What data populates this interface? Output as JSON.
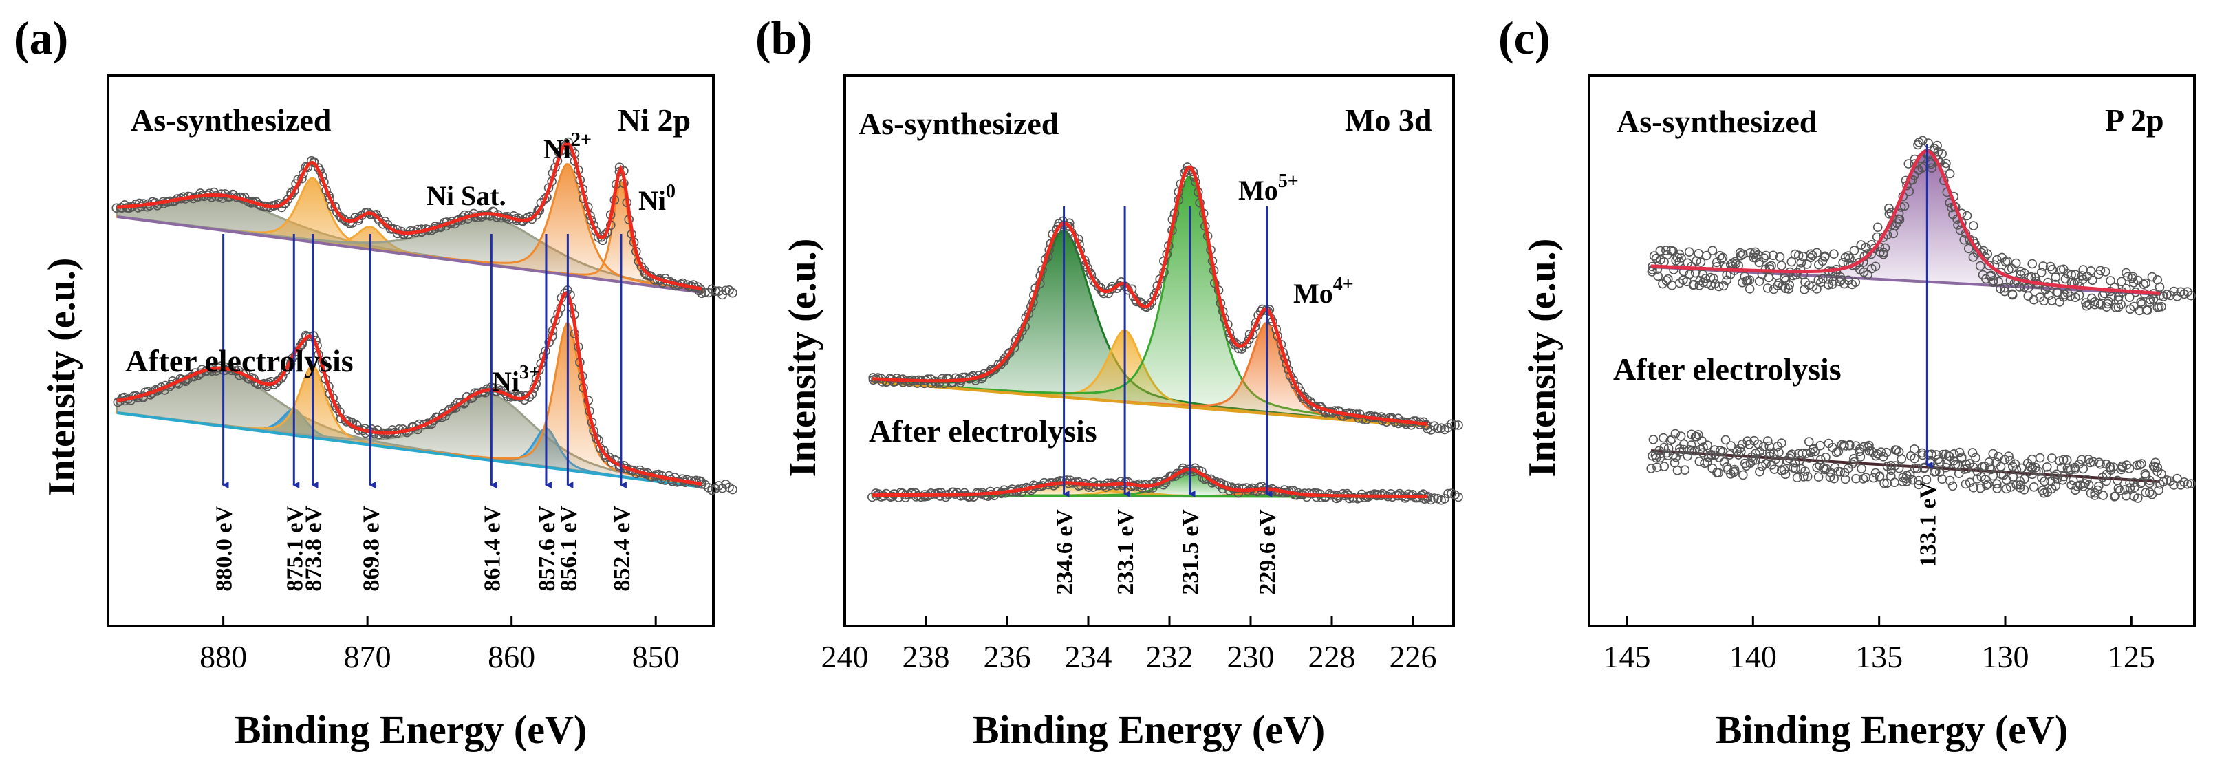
{
  "panels": [
    {
      "label": "(a)",
      "core_level": "Ni 2p",
      "top_label": "As-synthesized",
      "bottom_label": "After electrolysis"
    },
    {
      "label": "(b)",
      "core_level": "Mo 3d",
      "top_label": "As-synthesized",
      "bottom_label": "After electrolysis"
    },
    {
      "label": "(c)",
      "core_level": "P 2p",
      "top_label": "As-synthesized",
      "bottom_label": "After electrolysis"
    }
  ],
  "chart_data": [
    {
      "type": "line",
      "title": "Ni 2p",
      "xlabel": "Binding Energy (eV)",
      "ylabel": "Intensity (e.u.)",
      "xlim": [
        888,
        846
      ],
      "xticks": [
        880,
        870,
        860,
        850
      ],
      "xtick_labels": [
        "880",
        "870",
        "860",
        "850"
      ],
      "series": [
        {
          "name": "As-synthesized",
          "peaks": [
            {
              "center": 880.0,
              "width": 4.5,
              "height": 0.5,
              "color": "#9aa08a"
            },
            {
              "center": 873.8,
              "width": 1.1,
              "height": 0.98,
              "color": "#f2a83a"
            },
            {
              "center": 869.8,
              "width": 1.0,
              "height": 0.35,
              "color": "#f2a83a"
            },
            {
              "center": 861.4,
              "width": 4.0,
              "height": 0.72,
              "color": "#9aa08a"
            },
            {
              "center": 856.1,
              "width": 1.2,
              "height": 1.7,
              "color": "#f08a2e"
            },
            {
              "center": 852.4,
              "width": 0.6,
              "height": 1.55,
              "color": "#f08a2e"
            }
          ]
        },
        {
          "name": "After electrolysis",
          "peaks": [
            {
              "center": 880.0,
              "width": 4.0,
              "height": 0.85,
              "color": "#9aa08a"
            },
            {
              "center": 875.1,
              "width": 0.9,
              "height": 0.4,
              "color": "#3a9ad0"
            },
            {
              "center": 873.8,
              "width": 1.0,
              "height": 1.1,
              "color": "#f2a83a"
            },
            {
              "center": 861.4,
              "width": 3.3,
              "height": 1.0,
              "color": "#9aa08a"
            },
            {
              "center": 857.6,
              "width": 0.9,
              "height": 0.6,
              "color": "#3a9ad0"
            },
            {
              "center": 856.1,
              "width": 1.0,
              "height": 2.25,
              "color": "#f08a2e"
            }
          ]
        }
      ],
      "species_labels": [
        {
          "text": "Ni Sat.",
          "sup": ""
        },
        {
          "text": "Ni",
          "sup": "2+"
        },
        {
          "text": "Ni",
          "sup": "0"
        },
        {
          "text": "Ni",
          "sup": "3+"
        }
      ],
      "annotations": [
        {
          "energy": 880.0,
          "text": "880.0 eV"
        },
        {
          "energy": 875.1,
          "text": "875.1 eV"
        },
        {
          "energy": 873.8,
          "text": "873.8 eV"
        },
        {
          "energy": 869.8,
          "text": "869.8 eV"
        },
        {
          "energy": 861.4,
          "text": "861.4 eV"
        },
        {
          "energy": 857.6,
          "text": "857.6 eV"
        },
        {
          "energy": 856.1,
          "text": "856.1 eV"
        },
        {
          "energy": 852.4,
          "text": "852.4 eV"
        }
      ]
    },
    {
      "type": "line",
      "title": "Mo 3d",
      "xlabel": "Binding Energy (eV)",
      "ylabel": "Intensity (e.u.)",
      "xlim": [
        240,
        225
      ],
      "xticks": [
        240,
        238,
        236,
        234,
        232,
        230,
        228,
        226
      ],
      "xtick_labels": [
        "240",
        "238",
        "236",
        "234",
        "232",
        "230",
        "228",
        "226"
      ],
      "series": [
        {
          "name": "As-synthesized",
          "peaks": [
            {
              "center": 234.6,
              "width": 0.75,
              "height": 2.2,
              "color": "#1f7a2a"
            },
            {
              "center": 233.1,
              "width": 0.45,
              "height": 0.95,
              "color": "#f2b030"
            },
            {
              "center": 231.5,
              "width": 0.6,
              "height": 3.05,
              "color": "#3aa830"
            },
            {
              "center": 229.6,
              "width": 0.42,
              "height": 1.2,
              "color": "#f07a30"
            }
          ]
        },
        {
          "name": "After electrolysis",
          "peaks": [
            {
              "center": 234.6,
              "width": 0.9,
              "height": 0.16,
              "color": "#f2a030"
            },
            {
              "center": 233.1,
              "width": 0.5,
              "height": 0.1,
              "color": "#f2b030"
            },
            {
              "center": 231.5,
              "width": 0.55,
              "height": 0.34,
              "color": "#3aa830"
            },
            {
              "center": 229.6,
              "width": 0.5,
              "height": 0.08,
              "color": "#f07a30"
            }
          ]
        }
      ],
      "species_labels": [
        {
          "text": "Mo",
          "sup": "5+"
        },
        {
          "text": "Mo",
          "sup": "4+"
        }
      ],
      "annotations": [
        {
          "energy": 234.6,
          "text": "234.6 eV"
        },
        {
          "energy": 233.1,
          "text": "233.1 eV"
        },
        {
          "energy": 231.5,
          "text": "231.5 eV"
        },
        {
          "energy": 229.6,
          "text": "229.6 eV"
        }
      ]
    },
    {
      "type": "line",
      "title": "P 2p",
      "xlabel": "Binding Energy (eV)",
      "ylabel": "Intensity (e.u.)",
      "xlim": [
        146.5,
        122.5
      ],
      "xticks": [
        145,
        140,
        135,
        130,
        125
      ],
      "xtick_labels": [
        "145",
        "140",
        "135",
        "130",
        "125"
      ],
      "series": [
        {
          "name": "As-synthesized",
          "peaks": [
            {
              "center": 133.1,
              "width": 1.2,
              "height": 2.0,
              "color": "#8a5a9e"
            }
          ]
        },
        {
          "name": "After electrolysis",
          "peaks": []
        }
      ],
      "species_labels": [],
      "annotations": [
        {
          "energy": 133.1,
          "text": "133.1 eV"
        }
      ]
    }
  ]
}
